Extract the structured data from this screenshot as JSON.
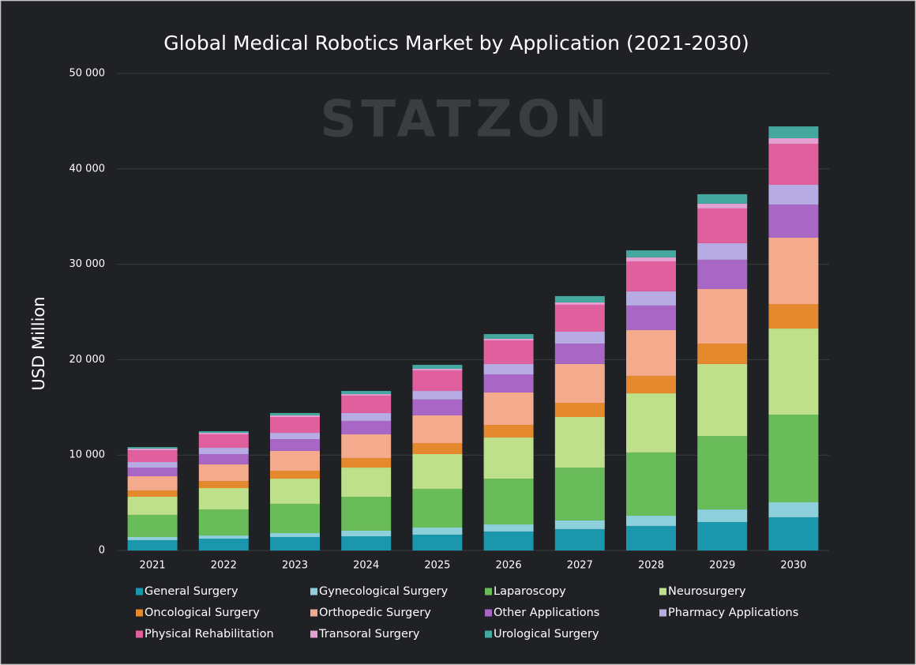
{
  "chart_data": {
    "type": "stacked-bar",
    "title": "Global Medical Robotics Market by Application (2021-2030)",
    "watermark": "STATZON",
    "ylabel": "USD Million",
    "categories": [
      "2021",
      "2022",
      "2023",
      "2024",
      "2025",
      "2026",
      "2027",
      "2028",
      "2029",
      "2030"
    ],
    "ylim": [
      0,
      50000
    ],
    "yticks": [
      0,
      {
        "value": 10000,
        "label": "10 000"
      },
      {
        "value": 20000,
        "label": "20 000"
      },
      {
        "value": 30000,
        "label": "30 000"
      },
      {
        "value": 40000,
        "label": "40 000"
      },
      {
        "value": 50000,
        "label": "50 000"
      }
    ],
    "grid": true,
    "legend": "bottom",
    "series": [
      {
        "name": "General Surgery",
        "color": "#1a96ad",
        "values": [
          1080,
          1240,
          1410,
          1490,
          1660,
          1990,
          2240,
          2570,
          2980,
          3480
        ]
      },
      {
        "name": "Gynecological Surgery",
        "color": "#8ecfdc",
        "values": [
          330,
          330,
          410,
          580,
          740,
          740,
          910,
          1070,
          1320,
          1570
        ]
      },
      {
        "name": "Laparoscopy",
        "color": "#6abb5a",
        "values": [
          2320,
          2730,
          3070,
          3560,
          4060,
          4800,
          5540,
          6630,
          7700,
          9190
        ]
      },
      {
        "name": "Neurosurgery",
        "color": "#bfe08a",
        "values": [
          1900,
          2240,
          2640,
          3060,
          3640,
          4310,
          5300,
          6200,
          7540,
          9020
        ]
      },
      {
        "name": "Oncological Surgery",
        "color": "#e5892f",
        "values": [
          660,
          740,
          830,
          1000,
          1160,
          1320,
          1490,
          1830,
          2150,
          2570
        ]
      },
      {
        "name": "Orthopedic Surgery",
        "color": "#f4ab8d",
        "values": [
          1490,
          1740,
          2070,
          2480,
          2900,
          3400,
          4060,
          4800,
          5710,
          6950
        ]
      },
      {
        "name": "Other Applications",
        "color": "#a867c4",
        "values": [
          910,
          1080,
          1240,
          1410,
          1660,
          1900,
          2150,
          2570,
          3070,
          3480
        ]
      },
      {
        "name": "Pharmacy Applications",
        "color": "#b6abe3",
        "values": [
          580,
          660,
          660,
          830,
          900,
          1080,
          1240,
          1490,
          1740,
          2070
        ]
      },
      {
        "name": "Physical Rehabilitation",
        "color": "#e0609e",
        "values": [
          1240,
          1410,
          1660,
          1820,
          2160,
          2480,
          2820,
          3140,
          3640,
          4300
        ]
      },
      {
        "name": "Transoral Surgery",
        "color": "#e4a0d3",
        "values": [
          170,
          160,
          170,
          160,
          160,
          170,
          250,
          420,
          500,
          580
        ]
      },
      {
        "name": "Urological Surgery",
        "color": "#44a89e",
        "values": [
          160,
          170,
          250,
          330,
          420,
          490,
          660,
          740,
          990,
          1240
        ]
      }
    ]
  }
}
